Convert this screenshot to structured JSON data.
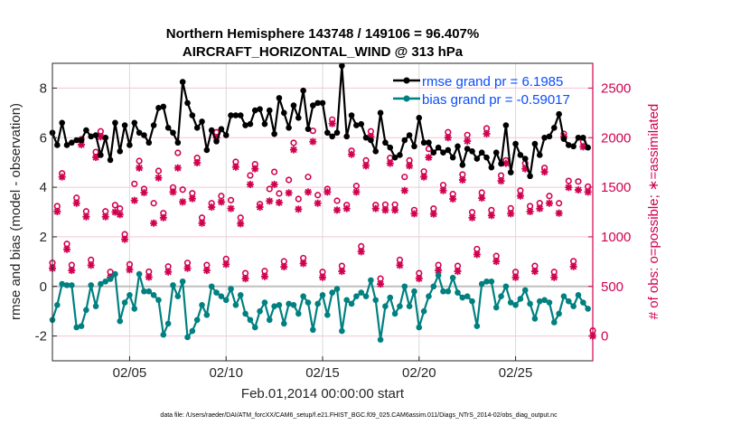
{
  "chart_data": {
    "type": "line",
    "title": "Northern Hemisphere 143748 / 149106 = 96.407%",
    "subtitle": "AIRCRAFT_HORIZONTAL_WIND @ 313 hPa",
    "xlabel": "Feb.01,2014 00:00:00 start",
    "ylabel": "rmse and bias (model - observation)",
    "y2label": "# of obs: o=possible; ∗=assimilated",
    "footnote": "data file: /Users/raeder/DAI/ATM_forcXX/CAM6_setup/f.e21.FHIST_BGC.f09_025.CAM6assim.011/Diags_NTrS_2014-02/obs_diag_output.nc",
    "x_units": "days since Feb.01,2014 00:00:00",
    "x_step_days": 0.25,
    "xlim": [
      0,
      28
    ],
    "ylim": [
      -3,
      9
    ],
    "y2lim": [
      -250,
      2750
    ],
    "xticks": [
      {
        "value": 4,
        "label": "02/05"
      },
      {
        "value": 9,
        "label": "02/10"
      },
      {
        "value": 14,
        "label": "02/15"
      },
      {
        "value": 19,
        "label": "02/20"
      },
      {
        "value": 24,
        "label": "02/25"
      }
    ],
    "yticks": [
      {
        "value": -2,
        "label": "-2"
      },
      {
        "value": 0,
        "label": "0"
      },
      {
        "value": 2,
        "label": "2"
      },
      {
        "value": 4,
        "label": "4"
      },
      {
        "value": 6,
        "label": "6"
      },
      {
        "value": 8,
        "label": "8"
      }
    ],
    "y2ticks": [
      {
        "value": 0,
        "label": "0"
      },
      {
        "value": 500,
        "label": "500"
      },
      {
        "value": 1000,
        "label": "1000"
      },
      {
        "value": 1500,
        "label": "1500"
      },
      {
        "value": 2000,
        "label": "2000"
      },
      {
        "value": 2500,
        "label": "2500"
      }
    ],
    "grid": true,
    "legend_position": "top-right",
    "colors": {
      "rmse": "#000000",
      "bias": "#008080",
      "obs": "#d1004f",
      "legend_text": "#0a4dff",
      "zero_line": "#bfbfbf",
      "grid_h": "#f2c6d6",
      "grid_v": "#d9d9d9"
    },
    "series": [
      {
        "name": "rmse",
        "legend": "rmse grand pr = 6.1985",
        "axis": "left",
        "values": [
          6.2,
          5.7,
          6.6,
          5.7,
          5.8,
          5.9,
          5.9,
          6.3,
          6.05,
          6.1,
          5.3,
          6.0,
          5.1,
          6.6,
          5.45,
          6.5,
          5.7,
          6.6,
          6.2,
          6.1,
          5.8,
          6.5,
          7.2,
          7.25,
          6.4,
          6.2,
          5.8,
          8.25,
          7.4,
          6.9,
          6.4,
          6.65,
          5.5,
          6.3,
          5.85,
          6.35,
          6.1,
          6.9,
          6.9,
          6.9,
          6.5,
          6.55,
          7.1,
          7.15,
          6.55,
          7.1,
          6.15,
          7.6,
          7.0,
          6.4,
          7.3,
          6.8,
          7.9,
          6.35,
          7.3,
          7.4,
          7.4,
          6.2,
          6.05,
          6.2,
          8.9,
          6.05,
          6.9,
          6.5,
          6.55,
          6.0,
          5.9,
          5.45,
          7.0,
          5.8,
          5.6,
          5.2,
          5.3,
          5.9,
          6.1,
          5.65,
          6.8,
          5.8,
          5.8,
          5.4,
          5.6,
          5.4,
          5.5,
          5.2,
          5.65,
          4.9,
          5.55,
          5.45,
          5.15,
          5.4,
          5.2,
          4.8,
          5.4,
          4.95,
          6.5,
          4.6,
          5.75,
          5.3,
          5.15,
          4.45,
          5.75,
          5.3,
          6.0,
          6.05,
          6.4,
          6.95,
          5.95,
          5.7,
          5.65,
          6.0,
          6.0,
          5.6
        ]
      },
      {
        "name": "bias",
        "legend": "bias grand pr = -0.59017",
        "axis": "left",
        "values": [
          -1.35,
          -0.75,
          0.1,
          0.05,
          0.05,
          -1.65,
          -1.6,
          -0.95,
          0.05,
          -0.8,
          0.1,
          0.2,
          0.3,
          0.5,
          -1.4,
          -0.65,
          -0.35,
          -0.9,
          0.5,
          -0.2,
          -0.2,
          -0.35,
          -0.55,
          -1.95,
          -1.5,
          0.05,
          -0.4,
          0.2,
          -2.05,
          -1.8,
          -1.35,
          -0.75,
          -1.15,
          0,
          -0.25,
          -0.4,
          -0.55,
          -0.1,
          -0.75,
          -0.35,
          -1.1,
          -1.35,
          -1.65,
          -1.0,
          -0.65,
          -1.35,
          -0.8,
          -0.75,
          -1.5,
          -0.7,
          -0.75,
          -1.1,
          -0.4,
          -0.65,
          -1.75,
          -0.7,
          -0.35,
          -1.15,
          -0.25,
          -0.1,
          -1.8,
          -0.55,
          -0.7,
          -0.4,
          -0.25,
          -0.4,
          0.25,
          -0.55,
          -2.15,
          -0.8,
          -0.45,
          -1.1,
          -0.8,
          0,
          -0.8,
          -0.2,
          -1.65,
          -1.0,
          -0.4,
          0,
          0.45,
          -0.2,
          -0.2,
          0.35,
          -0.25,
          -0.45,
          -0.4,
          -0.6,
          -1.6,
          0.1,
          0.2,
          0.2,
          -0.85,
          -0.4,
          0,
          -0.65,
          -0.75,
          -0.5,
          -0.15,
          -0.7,
          -1.3,
          -0.6,
          -0.55,
          -0.65,
          -1.45,
          -1.1,
          -0.4,
          -0.6,
          -0.8,
          -0.35,
          -0.65,
          -0.9
        ]
      },
      {
        "name": "obs possible",
        "axis": "right",
        "marker": "circle",
        "values": [
          683,
          1255,
          1640,
          874,
          661,
          1339,
          1930,
          1202,
          713,
          1801,
          2009,
          1202,
          591,
          1320,
          1285,
          1026,
          668,
          1534,
          1765,
          1483,
          594,
          1339,
          1665,
          1239,
          646,
          1498,
          1847,
          1476,
          683,
          1385,
          1796,
          1138,
          661,
          1339,
          2000,
          1412,
          722,
          1370,
          1756,
          1193,
          579,
          1619,
          1732,
          1330,
          600,
          1483,
          1655,
          1437,
          698,
          1574,
          1948,
          1382,
          731,
          1604,
          2069,
          1421,
          591,
          1483,
          2182,
          1364,
          652,
          1321,
          1868,
          1513,
          850,
          1716,
          2009,
          1321,
          524,
          1270,
          1741,
          1270,
          713,
          1604,
          1716,
          1270,
          579,
          1604,
          1887,
          1230,
          661,
          1522,
          2000,
          1431,
          652,
          1574,
          2027,
          1248,
          822,
          1391,
          2039,
          1215,
          752,
          1564,
          1771,
          1233,
          591,
          1412,
          1686,
          1255,
          652,
          1285,
          1695,
          1412,
          591,
          1339,
          2039,
          1564,
          700,
          1558,
          1960,
          1452,
          0
        ]
      },
      {
        "name": "obs assimilated",
        "axis": "right",
        "marker": "asterisk",
        "values": [
          683,
          1255,
          1604,
          874,
          661,
          1339,
          1930,
          1202,
          713,
          1801,
          2009,
          1202,
          591,
          1250,
          1224,
          975,
          668,
          1367,
          1695,
          1446,
          594,
          1138,
          1595,
          1193,
          646,
          1452,
          1695,
          1352,
          683,
          1385,
          1747,
          1138,
          661,
          1300,
          2000,
          1352,
          722,
          1285,
          1704,
          1132,
          579,
          1528,
          1686,
          1300,
          600,
          1361,
          1528,
          1346,
          698,
          1443,
          1878,
          1279,
          731,
          1452,
          1960,
          1339,
          591,
          1452,
          2142,
          1270,
          652,
          1285,
          1832,
          1452,
          850,
          1716,
          2009,
          1285,
          524,
          1270,
          1741,
          1270,
          713,
          1467,
          1716,
          1233,
          579,
          1604,
          1801,
          1230,
          661,
          1467,
          2000,
          1382,
          652,
          1574,
          1966,
          1193,
          822,
          1391,
          2039,
          1215,
          752,
          1564,
          1741,
          1233,
          591,
          1412,
          1686,
          1255,
          652,
          1285,
          1655,
          1339,
          591,
          1239,
          2009,
          1498,
          700,
          1473,
          1908,
          1452,
          0
        ]
      }
    ]
  }
}
